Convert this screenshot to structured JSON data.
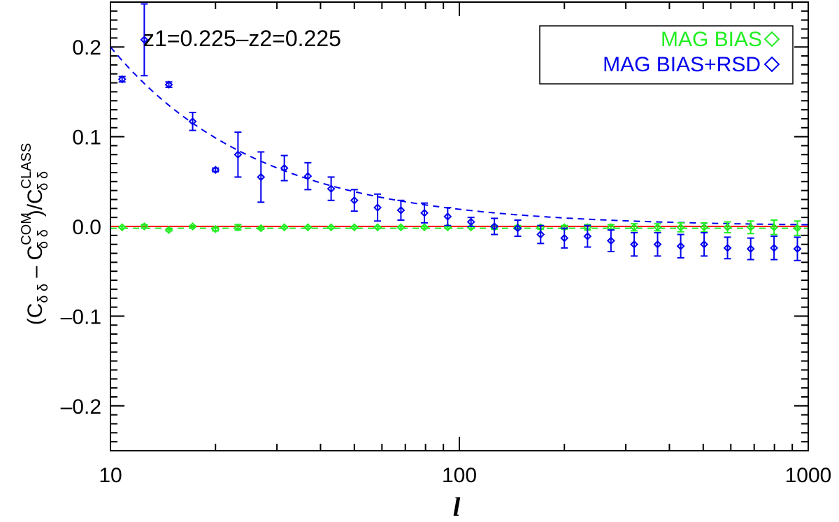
{
  "chart_data": {
    "type": "scatter",
    "xscale": "log",
    "xlim": [
      10,
      1000
    ],
    "ylim": [
      -0.25,
      0.25
    ],
    "xlabel": "l",
    "ylabel": {
      "open": "(C",
      "sub1": "δ δ",
      "minus": " – C",
      "sup2": "COM",
      "sub2": "δ δ",
      "close": ")/C",
      "sup3": "CLASS",
      "sub3": "δ δ"
    },
    "annotation": "z1=0.225–z2=0.225",
    "x_ticks": [
      10,
      100,
      1000
    ],
    "x_tick_labels": [
      "10",
      "100",
      "1000"
    ],
    "y_ticks": [
      -0.2,
      -0.1,
      0.0,
      0.1,
      0.2
    ],
    "y_tick_labels": [
      "–0.2",
      "–0.1",
      "0.0",
      "0.1",
      "0.2"
    ],
    "reference_line": {
      "y": 0,
      "color": "#ff0000"
    },
    "legend": {
      "position": "top-right",
      "entries": [
        {
          "label": "MAG BIAS",
          "color": "#22ee22",
          "marker": "diamond"
        },
        {
          "label": "MAG BIAS+RSD",
          "color": "#0000ee",
          "marker": "diamond"
        }
      ]
    },
    "series": [
      {
        "name": "MAG BIAS",
        "color": "#22ee22",
        "x": [
          10.8,
          12.5,
          14.7,
          17.2,
          20.0,
          23.2,
          27.0,
          31.5,
          36.8,
          42.9,
          50.0,
          58.3,
          68.0,
          79.4,
          92.6,
          108.0,
          126.0,
          147.0,
          171.0,
          200.0,
          233.0,
          272.0,
          317.0,
          370.0,
          431.0,
          503.0,
          587.0,
          684.0,
          798.0,
          931.0
        ],
        "y": [
          -0.001,
          0.0,
          -0.004,
          0.0,
          -0.003,
          -0.001,
          -0.002,
          -0.001,
          -0.001,
          -0.001,
          -0.001,
          -0.001,
          -0.001,
          -0.001,
          -0.001,
          -0.001,
          -0.001,
          -0.001,
          -0.001,
          -0.001,
          -0.001,
          -0.001,
          -0.001,
          -0.001,
          -0.001,
          -0.001,
          -0.001,
          -0.001,
          -0.001,
          -0.002
        ],
        "err": [
          0.001,
          0.002,
          0.001,
          0.001,
          0.002,
          0.003,
          0.001,
          0.001,
          0.001,
          0.001,
          0.001,
          0.001,
          0.001,
          0.001,
          0.001,
          0.001,
          0.002,
          0.002,
          0.002,
          0.002,
          0.003,
          0.003,
          0.004,
          0.004,
          0.005,
          0.005,
          0.006,
          0.007,
          0.008,
          0.008
        ],
        "fit": {
          "type": "constant",
          "y": -0.002,
          "style": "dashed"
        }
      },
      {
        "name": "MAG BIAS+RSD",
        "color": "#0000ee",
        "x": [
          10.8,
          12.5,
          14.7,
          17.2,
          20.0,
          23.2,
          27.0,
          31.5,
          36.8,
          42.9,
          50.0,
          58.3,
          68.0,
          79.4,
          92.6,
          108.0,
          126.0,
          147.0,
          171.0,
          200.0,
          233.0,
          272.0,
          317.0,
          370.0,
          431.0,
          503.0,
          587.0,
          684.0,
          798.0,
          931.0
        ],
        "y": [
          0.164,
          0.208,
          0.158,
          0.117,
          0.063,
          0.08,
          0.055,
          0.065,
          0.056,
          0.042,
          0.029,
          0.021,
          0.018,
          0.015,
          0.011,
          0.005,
          0.0,
          -0.002,
          -0.009,
          -0.013,
          -0.011,
          -0.016,
          -0.02,
          -0.02,
          -0.022,
          -0.02,
          -0.024,
          -0.025,
          -0.024,
          -0.025
        ],
        "err": [
          0.003,
          0.04,
          0.003,
          0.01,
          0.002,
          0.025,
          0.028,
          0.014,
          0.015,
          0.013,
          0.012,
          0.015,
          0.011,
          0.011,
          0.01,
          0.005,
          0.009,
          0.009,
          0.01,
          0.011,
          0.012,
          0.012,
          0.013,
          0.013,
          0.013,
          0.013,
          0.012,
          0.012,
          0.013,
          0.013
        ],
        "fit": {
          "type": "power",
          "amplitude": 0.2,
          "x0": 10,
          "exponent": -1.02,
          "style": "dashed"
        }
      }
    ]
  }
}
